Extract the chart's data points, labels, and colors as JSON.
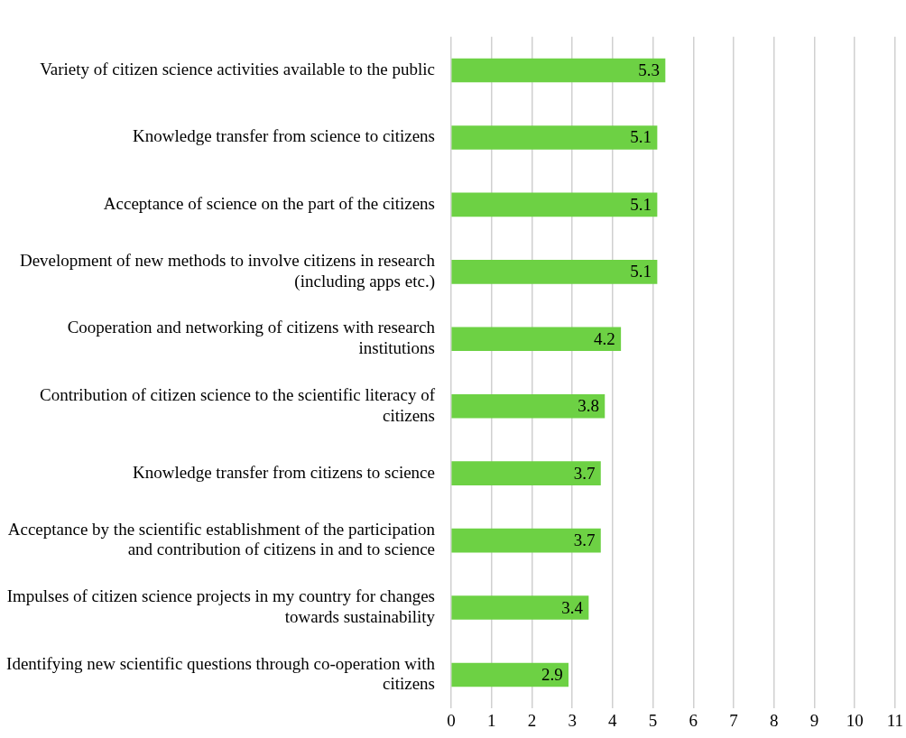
{
  "chart_data": {
    "type": "bar",
    "orientation": "horizontal",
    "categories": [
      "Variety of citizen science activities available to the public",
      "Knowledge transfer from science to citizens",
      "Acceptance of science on the part of the citizens",
      "Development of new methods to involve citizens in research (including apps etc.)",
      "Cooperation and networking of citizens with research institutions",
      "Contribution of citizen science to the scientific literacy of citizens",
      "Knowledge transfer from citizens to science",
      "Acceptance by the scientific establishment of the participation and contribution of citizens in and to science",
      "Impulses of citizen science projects in my country for changes towards sustainability",
      "Identifying new scientific questions through co-operation with citizens"
    ],
    "values": [
      5.3,
      5.1,
      5.1,
      5.1,
      4.2,
      3.8,
      3.7,
      3.7,
      3.4,
      2.9
    ],
    "color": "#6dd144",
    "xlim": [
      0,
      11
    ],
    "xticks": [
      0,
      1,
      2,
      3,
      4,
      5,
      6,
      7,
      8,
      9,
      10,
      11
    ],
    "grid": "x",
    "legend": false,
    "data_labels": true
  }
}
